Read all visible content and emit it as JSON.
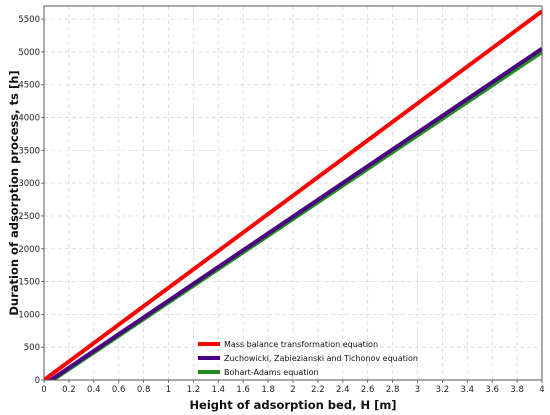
{
  "chart_data": {
    "type": "line",
    "xlabel": "Height of adsorption bed, H [m]",
    "ylabel": "Duration of adsorption process, ts [h]",
    "xlim": [
      0,
      4
    ],
    "ylim": [
      0,
      5700
    ],
    "xticks": [
      "0",
      "0.2",
      "0.4",
      "0.6",
      "0.8",
      "1",
      "1.2",
      "1.4",
      "1.6",
      "1.8",
      "2",
      "2.2",
      "2.4",
      "2.6",
      "2.8",
      "3",
      "3.2",
      "3.4",
      "3.6",
      "3.8",
      "4"
    ],
    "yticks": [
      "0",
      "500",
      "1000",
      "1500",
      "2000",
      "2500",
      "3000",
      "3500",
      "4000",
      "4500",
      "5000",
      "5500"
    ],
    "grid": true,
    "legend_position": "bottom-center",
    "series": [
      {
        "name": "Mass balance transformation equation",
        "color": "#ff0000",
        "x": [
          0,
          4
        ],
        "y": [
          0,
          5620
        ]
      },
      {
        "name": "Zuchowicki, Zabiezianski and Tichonov equation",
        "color": "#4b0082",
        "x": [
          0,
          4
        ],
        "y": [
          -70,
          5050
        ]
      },
      {
        "name": "Bohart-Adams equation",
        "color": "#1e8c1e",
        "x": [
          0,
          4
        ],
        "y": [
          -90,
          5000
        ]
      }
    ]
  }
}
